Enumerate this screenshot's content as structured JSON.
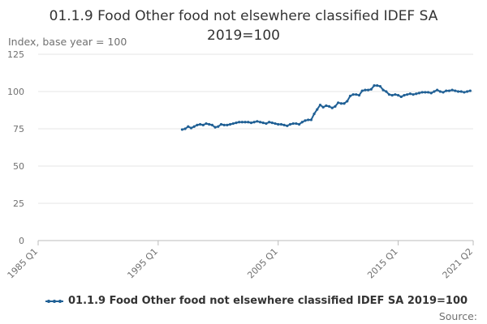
{
  "chart_data": {
    "type": "line",
    "title": "01.1.9 Food Other food not elsewhere classified IDEF SA 2019=100",
    "ylabel": "Index, base year = 100",
    "xlabel": "",
    "ylim": [
      0,
      125
    ],
    "yticks": [
      0,
      25,
      50,
      75,
      100,
      125
    ],
    "xticks": [
      "1985 Q1",
      "1995 Q1",
      "2005 Q1",
      "2015 Q1",
      "2021 Q2"
    ],
    "x_quarters": {
      "start": "1985 Q1",
      "end": "2021 Q2"
    },
    "grid": true,
    "legend_position": "bottom",
    "source_label": "Source:",
    "colors": {
      "series": "#206095",
      "grid": "#e6e6e6",
      "axis": "#bbbbbb"
    },
    "series": [
      {
        "name": "01.1.9 Food Other food not elsewhere classified IDEF SA 2019=100",
        "start": "1997 Q1",
        "values": [
          74.5,
          75.0,
          76.5,
          75.5,
          76.5,
          77.5,
          78.0,
          77.5,
          78.5,
          78.0,
          77.5,
          76.0,
          76.5,
          78.0,
          77.5,
          77.5,
          78.0,
          78.5,
          79.0,
          79.5,
          79.5,
          79.5,
          79.5,
          79.0,
          79.5,
          80.0,
          79.5,
          79.0,
          78.5,
          79.5,
          79.0,
          78.5,
          78.0,
          78.0,
          77.5,
          77.0,
          78.0,
          78.5,
          78.5,
          78.0,
          79.5,
          80.5,
          81.0,
          81.0,
          85.0,
          88.0,
          91.0,
          89.5,
          90.5,
          90.0,
          89.0,
          90.0,
          92.5,
          92.0,
          92.0,
          93.5,
          97.0,
          98.0,
          98.0,
          97.5,
          100.5,
          101.0,
          101.0,
          101.5,
          104.0,
          104.0,
          103.5,
          101.0,
          100.0,
          98.0,
          97.5,
          98.0,
          97.5,
          96.5,
          97.5,
          98.0,
          98.5,
          98.0,
          98.5,
          99.0,
          99.5,
          99.5,
          99.5,
          99.0,
          100.0,
          101.0,
          100.0,
          99.5,
          100.5,
          100.5,
          101.0,
          100.5,
          100.0,
          100.0,
          99.5,
          100.0,
          100.5
        ]
      }
    ]
  }
}
